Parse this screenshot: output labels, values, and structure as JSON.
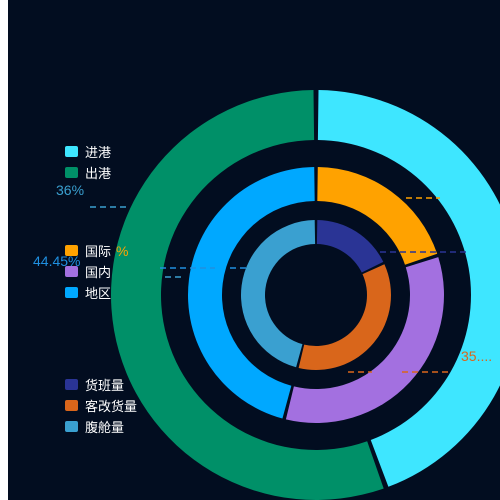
{
  "chart_data": [
    {
      "type": "pie",
      "ring": "outer",
      "legend_position": "left",
      "colors": [
        "#3ee6ff",
        "#009068"
      ],
      "slices": [
        {
          "name": "进港",
          "value": 44.45
        },
        {
          "name": "出港",
          "value": 55.55
        }
      ],
      "visible_labels": [
        {
          "text": "44.45%",
          "color": "#1f8fe0"
        }
      ]
    },
    {
      "type": "pie",
      "ring": "middle",
      "legend_position": "left",
      "colors": [
        "#ffa200",
        "#a370e0",
        "#00a8ff"
      ],
      "slices": [
        {
          "name": "国际",
          "value": 20.0
        },
        {
          "name": "国内",
          "value": 34.0
        },
        {
          "name": "地区",
          "value": 46.0
        }
      ],
      "visible_labels": [
        {
          "text": "%",
          "color": "#ffa200"
        },
        {
          "text": "35....",
          "color": "#d9661b"
        }
      ]
    },
    {
      "type": "pie",
      "ring": "inner",
      "legend_position": "left",
      "colors": [
        "#2a3495",
        "#d9661b",
        "#3aa0d0"
      ],
      "slices": [
        {
          "name": "货班量",
          "value": 18.0
        },
        {
          "name": "客改货量",
          "value": 36.0
        },
        {
          "name": "腹舱量",
          "value": 46.0
        }
      ],
      "visible_labels": [
        {
          "text": "36%",
          "color": "#3aa0d0"
        }
      ]
    }
  ]
}
